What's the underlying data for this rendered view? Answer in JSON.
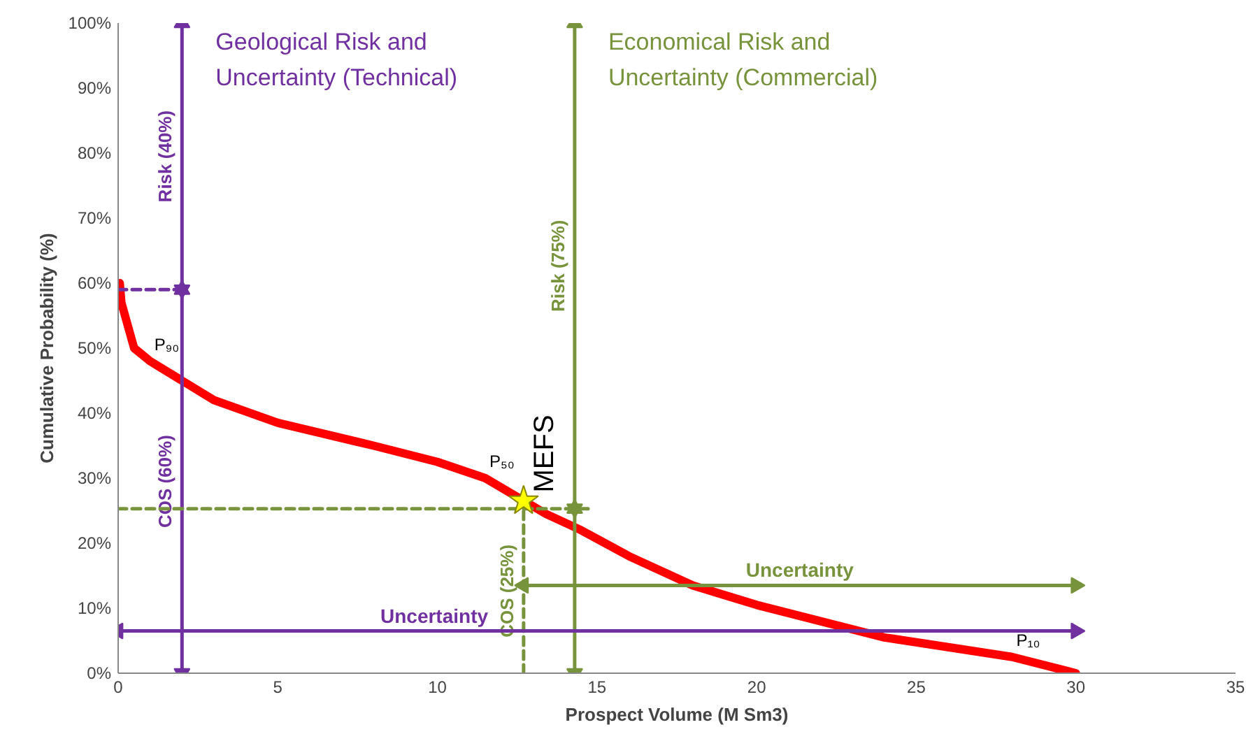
{
  "chart_data": {
    "type": "line",
    "xlabel": "Prospect Volume (M Sm3)",
    "ylabel": "Cumulative Probability (%)",
    "xlim": [
      0,
      35
    ],
    "xticks": [
      0,
      5,
      10,
      15,
      20,
      25,
      30,
      35
    ],
    "ylim": [
      0,
      100
    ],
    "yticks": [
      {
        "value": 0,
        "label": "0%"
      },
      {
        "value": 10,
        "label": "10%"
      },
      {
        "value": 20,
        "label": "20%"
      },
      {
        "value": 30,
        "label": "30%"
      },
      {
        "value": 40,
        "label": "40%"
      },
      {
        "value": 50,
        "label": "50%"
      },
      {
        "value": 60,
        "label": "60%"
      },
      {
        "value": 70,
        "label": "70%"
      },
      {
        "value": 80,
        "label": "80%"
      },
      {
        "value": 90,
        "label": "90%"
      },
      {
        "value": 100,
        "label": "100%"
      }
    ],
    "grid": false,
    "marker": "none",
    "series": [
      {
        "color": "#ff0000",
        "x": [
          0.05,
          0.1,
          0.5,
          1,
          2,
          3,
          5,
          8,
          10,
          11.5,
          13.4,
          14.5,
          16,
          18,
          20,
          22,
          24,
          26,
          28,
          30
        ],
        "values": [
          60,
          57,
          50,
          48,
          45,
          42,
          38.5,
          35,
          32.5,
          30,
          24.5,
          22,
          18,
          13.5,
          10.5,
          8,
          5.5,
          4,
          2.5,
          0
        ]
      },
      {
        "type": "line",
        "name": "Risk (40%)",
        "color": "#7030a0",
        "marker": "triangle",
        "x": [
          2,
          2
        ],
        "values": [
          59,
          100
        ]
      },
      {
        "type": "line",
        "name": "COS (60%)",
        "color": "#7030a0",
        "marker": "triangle",
        "x": [
          2,
          2
        ],
        "values": [
          0,
          59
        ]
      },
      {
        "type": "line",
        "color": "#7030a0",
        "line_style": "dashed",
        "x": [
          0,
          2
        ],
        "values": [
          59,
          59
        ]
      },
      {
        "type": "line",
        "name": "Risk (75%)",
        "color": "#77933c",
        "marker": "triangle",
        "x": [
          14.3,
          14.3
        ],
        "values": [
          25.3,
          100
        ]
      },
      {
        "type": "line",
        "color": "#77933c",
        "marker": "triangle",
        "x": [
          14.3,
          14.3
        ],
        "values": [
          0,
          25.3
        ]
      },
      {
        "type": "line",
        "color": "#77933c",
        "line_style": "dashed",
        "x": [
          0,
          14.8
        ],
        "values": [
          25.3,
          25.3
        ]
      },
      {
        "type": "line",
        "name": "COS (25%)",
        "color": "#77933c",
        "line_style": "dashed",
        "x": [
          12.7,
          12.7
        ],
        "values": [
          0,
          25.3
        ]
      },
      {
        "type": "line",
        "name": "Uncertainty",
        "color": "#7030a0",
        "marker": "triangle",
        "x": [
          0,
          30
        ],
        "values": [
          6.5,
          6.5
        ]
      },
      {
        "type": "line",
        "name": "Uncertainty",
        "color": "#77933c",
        "marker": "triangle",
        "x": [
          12.7,
          30
        ],
        "values": [
          13.5,
          13.5
        ]
      },
      {
        "type": "scatter",
        "name": "MEFS",
        "color": "#ffff00",
        "marker": "star",
        "x": [
          12.7
        ],
        "values": [
          26.5
        ]
      }
    ],
    "annotations": [
      "Geological Risk and\nUncertainty (Technical)",
      "Economical Risk and\nUncertainty (Commercial)",
      {
        "text": "P₉₀",
        "x": 1,
        "y": 48
      },
      {
        "text": "P₅₀",
        "x": 11.5,
        "y": 30
      },
      {
        "text": "P₁₀",
        "x": 28,
        "y": 2.5
      }
    ]
  }
}
